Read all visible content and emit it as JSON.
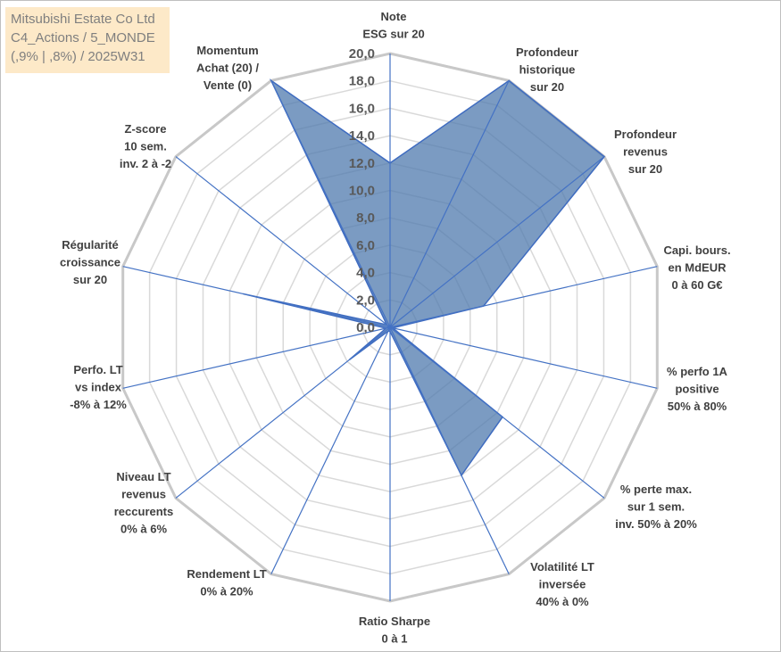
{
  "title_box": {
    "line1": "Mitsubishi Estate Co Ltd",
    "line2": "C4_Actions / 5_MONDE",
    "line3": "(,9% | ,8%) / 2025W31"
  },
  "colors": {
    "fill": "#4f79ad",
    "stroke": "#3f6cc0",
    "grid": "#d9d9d9",
    "outer_ring": "#c8c8c8",
    "title_bg": "#fde9c8"
  },
  "chart_data": {
    "type": "radar",
    "range": [
      0,
      20
    ],
    "ticks": [
      "0,0",
      "2,0",
      "4,0",
      "6,0",
      "8,0",
      "10,0",
      "12,0",
      "14,0",
      "16,0",
      "18,0",
      "20,0"
    ],
    "axes": [
      {
        "label": [
          "Note",
          "ESG sur 20"
        ],
        "value": 12.0
      },
      {
        "label": [
          "Profondeur",
          "historique",
          "sur 20"
        ],
        "value": 20.0
      },
      {
        "label": [
          "Profondeur",
          "revenus",
          "sur 20"
        ],
        "value": 20.0
      },
      {
        "label": [
          "Capi. bours.",
          "en MdEUR",
          "0 à 60 G€"
        ],
        "value": 7.0
      },
      {
        "label": [
          "% perfo 1A",
          "positive",
          "50% à 80%"
        ],
        "value": 0.2
      },
      {
        "label": [
          "% perte max.",
          "sur 1 sem.",
          "inv. 50% à 20%"
        ],
        "value": 10.5
      },
      {
        "label": [
          "Volatilité LT",
          "inversée",
          "40% à 0%"
        ],
        "value": 12.0
      },
      {
        "label": [
          "Ratio Sharpe",
          "0 à 1"
        ],
        "value": 0.3
      },
      {
        "label": [
          "Rendement LT",
          "0% à 20%"
        ],
        "value": 0.3
      },
      {
        "label": [
          "Niveau LT",
          "revenus",
          "reccurents",
          "0% à 6%"
        ],
        "value": 3.8
      },
      {
        "label": [
          "Perfo. LT",
          "vs index",
          "-8% à 12%"
        ],
        "value": 0.3
      },
      {
        "label": [
          "Régularité",
          "croissance",
          "sur 20"
        ],
        "value": 11.0
      },
      {
        "label": [
          "Z-score",
          "10 sem.",
          "inv. 2 à -2"
        ],
        "value": 0.3
      },
      {
        "label": [
          "Momentum",
          "Achat (20) /",
          "Vente (0)"
        ],
        "value": 20.0
      }
    ]
  }
}
